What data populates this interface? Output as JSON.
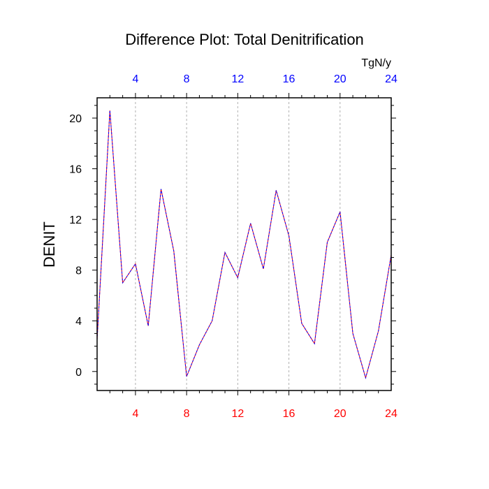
{
  "chart_data": {
    "type": "line",
    "title": "Difference Plot: Total Denitrification",
    "ylabel": "DENIT",
    "units": "TgN/y",
    "xlim": [
      1,
      24
    ],
    "ylim": [
      -1.5,
      21.6
    ],
    "x_ticks": [
      4,
      8,
      12,
      16,
      20,
      24
    ],
    "x_tick_labels": [
      "4",
      "8",
      "12",
      "16",
      "20",
      "24"
    ],
    "y_ticks": [
      0,
      4,
      8,
      12,
      16,
      20
    ],
    "y_tick_labels": [
      "0",
      "4",
      "8",
      "12",
      "16",
      "20"
    ],
    "grid": "vertical-dashed",
    "colors": {
      "bottom_axis_labels": "#ff0000",
      "top_axis_labels": "#0000ff",
      "series_a": "#ff0000",
      "series_b": "#0000ff",
      "grid": "#b0b0b0"
    },
    "x": [
      1,
      2,
      3,
      4,
      5,
      6,
      7,
      8,
      9,
      10,
      11,
      12,
      13,
      14,
      15,
      16,
      17,
      18,
      19,
      20,
      21,
      22,
      23,
      24
    ],
    "series": [
      {
        "values": [
          2.5,
          20.6,
          7.0,
          8.5,
          3.6,
          14.4,
          9.5,
          -0.4,
          2.1,
          4.0,
          9.4,
          7.4,
          11.7,
          8.1,
          14.3,
          10.7,
          3.8,
          2.2,
          10.2,
          12.6,
          3.0,
          -0.5,
          3.2,
          9.2
        ]
      },
      {
        "values": [
          2.5,
          20.6,
          7.0,
          8.5,
          3.6,
          14.4,
          9.5,
          -0.4,
          2.1,
          4.0,
          9.4,
          7.4,
          11.7,
          8.1,
          14.3,
          10.7,
          3.8,
          2.2,
          10.2,
          12.6,
          3.0,
          -0.5,
          3.2,
          9.2
        ]
      }
    ]
  }
}
